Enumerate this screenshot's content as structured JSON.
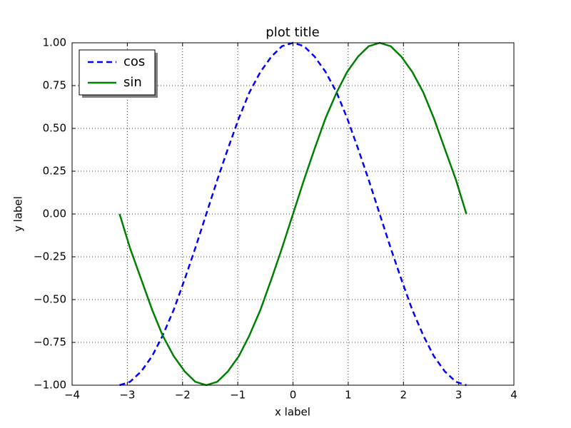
{
  "chart_data": {
    "type": "line",
    "title": "plot title",
    "x_label": "x label",
    "y_label": "y label",
    "x": [
      -3.14,
      -2.95,
      -2.75,
      -2.55,
      -2.36,
      -2.16,
      -1.96,
      -1.77,
      -1.57,
      -1.37,
      -1.18,
      -0.98,
      -0.79,
      -0.59,
      -0.39,
      -0.2,
      0.0,
      0.2,
      0.39,
      0.59,
      0.79,
      0.98,
      1.18,
      1.37,
      1.57,
      1.77,
      1.96,
      2.16,
      2.36,
      2.55,
      2.75,
      2.95,
      3.14
    ],
    "series": [
      {
        "name": "cos",
        "color": "#0000ff",
        "dash": "dashed",
        "values": [
          -1.0,
          -0.98,
          -0.92,
          -0.83,
          -0.71,
          -0.56,
          -0.38,
          -0.2,
          0.0,
          0.2,
          0.38,
          0.56,
          0.71,
          0.83,
          0.92,
          0.98,
          1.0,
          0.98,
          0.92,
          0.83,
          0.71,
          0.56,
          0.38,
          0.2,
          0.0,
          -0.2,
          -0.38,
          -0.56,
          -0.71,
          -0.83,
          -0.92,
          -0.98,
          -1.0
        ]
      },
      {
        "name": "sin",
        "color": "#008000",
        "dash": "solid",
        "values": [
          0.0,
          -0.2,
          -0.38,
          -0.56,
          -0.71,
          -0.83,
          -0.92,
          -0.98,
          -1.0,
          -0.98,
          -0.92,
          -0.83,
          -0.71,
          -0.56,
          -0.38,
          -0.2,
          0.0,
          0.2,
          0.38,
          0.56,
          0.71,
          0.83,
          0.92,
          0.98,
          1.0,
          0.98,
          0.92,
          0.83,
          0.71,
          0.56,
          0.38,
          0.2,
          0.0
        ]
      }
    ],
    "xlim": [
      -4,
      4
    ],
    "xticks": [
      {
        "value": -4,
        "label": "−4"
      },
      {
        "value": -3,
        "label": "−3"
      },
      {
        "value": -2,
        "label": "−2"
      },
      {
        "value": -1,
        "label": "−1"
      },
      0,
      1,
      2,
      3,
      4
    ],
    "ylim": [
      -1,
      1
    ],
    "yticks": [
      {
        "value": -1,
        "label": "−1.00"
      },
      {
        "value": -0.75,
        "label": "−0.75"
      },
      {
        "value": -0.5,
        "label": "−0.50"
      },
      {
        "value": -0.25,
        "label": "−0.25"
      },
      {
        "value": 0,
        "label": "0.00"
      },
      {
        "value": 0.25,
        "label": "0.25"
      },
      {
        "value": 0.5,
        "label": "0.50"
      },
      {
        "value": 0.75,
        "label": "0.75"
      },
      {
        "value": 1,
        "label": "1.00"
      }
    ],
    "grid": true,
    "legend_loc": "upper left"
  }
}
